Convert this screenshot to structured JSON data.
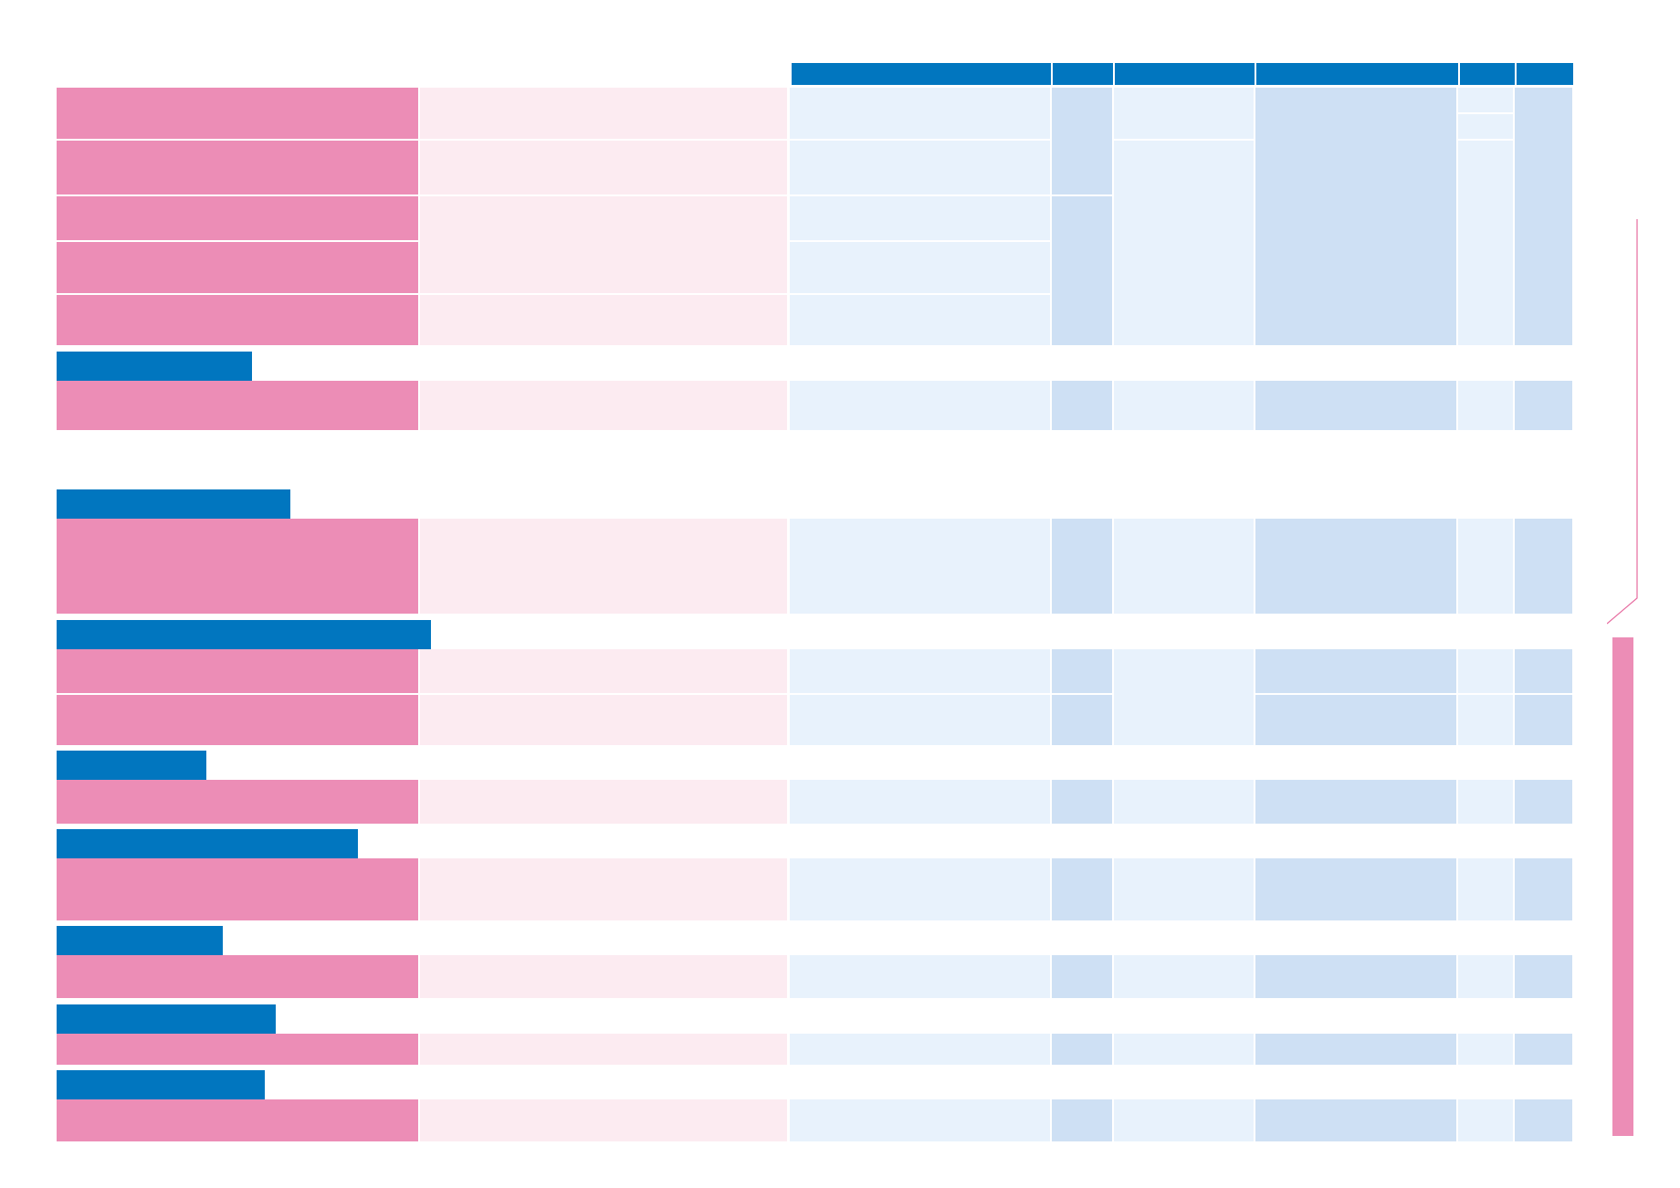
{
  "page": {
    "title": "",
    "colors": {
      "header_blue": "#0176bf",
      "row_label_pink": "#ec8db6",
      "row_desc_pink_light": "#fcebf1",
      "cell_blue_light": "#e8f2fc",
      "cell_blue_mid": "#cee0f4",
      "side_bar_pink": "#ec8db6",
      "bracket_line": "#e66a9e"
    }
  },
  "table": {
    "column_headers": [
      "",
      "",
      "",
      "",
      "",
      "",
      "",
      ""
    ],
    "sections": [
      {
        "name": "",
        "label": "",
        "rows": [
          {
            "label": "",
            "description": "",
            "values": [
              "",
              "",
              "",
              "",
              "",
              ""
            ]
          },
          {
            "label": "",
            "description": "",
            "values": [
              "",
              "",
              "",
              "",
              "",
              ""
            ]
          },
          {
            "label": "",
            "description": "",
            "values": [
              "",
              "",
              "",
              "",
              "",
              ""
            ]
          },
          {
            "label": "",
            "description": "",
            "values": [
              "",
              "",
              "",
              "",
              "",
              ""
            ]
          },
          {
            "label": "",
            "description": "",
            "values": [
              "",
              "",
              "",
              "",
              "",
              ""
            ]
          }
        ]
      },
      {
        "name": "",
        "label": "",
        "rows": [
          {
            "label": "",
            "description": "",
            "values": [
              "",
              "",
              "",
              "",
              "",
              ""
            ]
          }
        ]
      },
      {
        "name": "",
        "label": "",
        "rows": [
          {
            "label": "",
            "description": "",
            "values": [
              "",
              "",
              "",
              "",
              "",
              ""
            ]
          }
        ]
      },
      {
        "name": "",
        "label": "",
        "rows": [
          {
            "label": "",
            "description": "",
            "values": [
              "",
              "",
              "",
              "",
              "",
              ""
            ]
          },
          {
            "label": "",
            "description": "",
            "values": [
              "",
              "",
              "",
              "",
              "",
              ""
            ]
          }
        ]
      },
      {
        "name": "",
        "label": "",
        "rows": [
          {
            "label": "",
            "description": "",
            "values": [
              "",
              "",
              "",
              "",
              "",
              ""
            ]
          }
        ]
      },
      {
        "name": "",
        "label": "",
        "rows": [
          {
            "label": "",
            "description": "",
            "values": [
              "",
              "",
              "",
              "",
              "",
              ""
            ]
          }
        ]
      },
      {
        "name": "",
        "label": "",
        "rows": [
          {
            "label": "",
            "description": "",
            "values": [
              "",
              "",
              "",
              "",
              "",
              ""
            ]
          }
        ]
      },
      {
        "name": "",
        "label": "",
        "rows": [
          {
            "label": "",
            "description": "",
            "values": [
              "",
              "",
              "",
              "",
              "",
              ""
            ]
          }
        ]
      },
      {
        "name": "",
        "label": "",
        "rows": [
          {
            "label": "",
            "description": "",
            "values": [
              "",
              "",
              "",
              "",
              "",
              ""
            ]
          }
        ]
      }
    ]
  },
  "side_note": {
    "text": "",
    "icon": "bracket-icon"
  }
}
